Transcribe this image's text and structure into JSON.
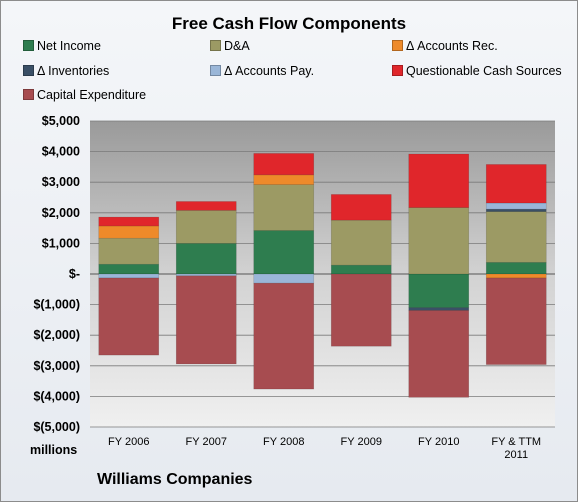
{
  "chart_data": {
    "type": "bar",
    "stacked": true,
    "title": "Free Cash Flow Components",
    "subtitle": "Williams Companies",
    "ylabel": "millions",
    "ylim": [
      -5000,
      5000
    ],
    "yticks": [
      5000,
      4000,
      3000,
      2000,
      1000,
      0,
      -1000,
      -2000,
      -3000,
      -4000,
      -5000
    ],
    "ytick_labels": [
      "$5,000",
      "$4,000",
      "$3,000",
      "$2,000",
      "$1,000",
      "$-",
      "$(1,000)",
      "$(2,000)",
      "$(3,000)",
      "$(4,000)",
      "$(5,000)"
    ],
    "grid": true,
    "legend_position": "top",
    "categories": [
      "FY 2006",
      "FY 2007",
      "FY 2008",
      "FY 2009",
      "FY 2010",
      "FY & TTM 2011"
    ],
    "series": [
      {
        "name": "Net Income",
        "color": "#2e7d4f",
        "values": [
          320,
          1000,
          1420,
          290,
          -1100,
          380
        ]
      },
      {
        "name": "D&A",
        "color": "#9c9a64",
        "values": [
          850,
          1080,
          1500,
          1470,
          2170,
          1660
        ]
      },
      {
        "name": "Δ Accounts Rec.",
        "color": "#ee8a2a",
        "values": [
          400,
          0,
          320,
          0,
          0,
          -130
        ]
      },
      {
        "name": "Δ Inventories",
        "color": "#3a4f66",
        "values": [
          0,
          0,
          0,
          0,
          -90,
          80
        ]
      },
      {
        "name": "Δ Accounts Pay.",
        "color": "#9ab6d8",
        "values": [
          -130,
          -60,
          -300,
          0,
          0,
          200
        ]
      },
      {
        "name": "Questionable Cash Sources",
        "color": "#e0262b",
        "values": [
          290,
          290,
          700,
          840,
          1750,
          1260
        ]
      },
      {
        "name": "Capital Expenditure",
        "color": "#a74c50",
        "values": [
          -2520,
          -2880,
          -3460,
          -2360,
          -2840,
          -2830
        ]
      }
    ]
  }
}
